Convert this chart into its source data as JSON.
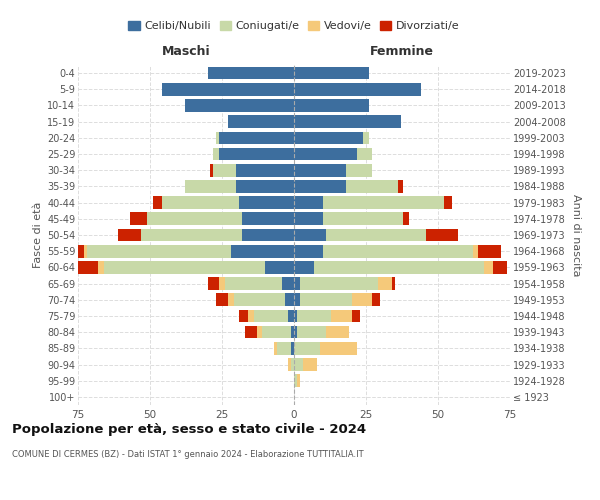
{
  "age_groups": [
    "100+",
    "95-99",
    "90-94",
    "85-89",
    "80-84",
    "75-79",
    "70-74",
    "65-69",
    "60-64",
    "55-59",
    "50-54",
    "45-49",
    "40-44",
    "35-39",
    "30-34",
    "25-29",
    "20-24",
    "15-19",
    "10-14",
    "5-9",
    "0-4"
  ],
  "birth_years": [
    "≤ 1923",
    "1924-1928",
    "1929-1933",
    "1934-1938",
    "1939-1943",
    "1944-1948",
    "1949-1953",
    "1954-1958",
    "1959-1963",
    "1964-1968",
    "1969-1973",
    "1974-1978",
    "1979-1983",
    "1984-1988",
    "1989-1993",
    "1994-1998",
    "1999-2003",
    "2004-2008",
    "2009-2013",
    "2014-2018",
    "2019-2023"
  ],
  "maschi": {
    "celibi": [
      0,
      0,
      0,
      1,
      1,
      2,
      3,
      4,
      10,
      22,
      18,
      18,
      19,
      20,
      20,
      26,
      26,
      23,
      38,
      46,
      30
    ],
    "coniugati": [
      0,
      0,
      1,
      5,
      10,
      12,
      18,
      20,
      56,
      50,
      35,
      33,
      27,
      18,
      8,
      2,
      1,
      0,
      0,
      0,
      0
    ],
    "vedovi": [
      0,
      0,
      1,
      1,
      2,
      2,
      2,
      2,
      2,
      1,
      0,
      0,
      0,
      0,
      0,
      0,
      0,
      0,
      0,
      0,
      0
    ],
    "divorziati": [
      0,
      0,
      0,
      0,
      4,
      3,
      4,
      4,
      7,
      3,
      8,
      6,
      3,
      0,
      1,
      0,
      0,
      0,
      0,
      0,
      0
    ]
  },
  "femmine": {
    "nubili": [
      0,
      0,
      0,
      0,
      1,
      1,
      2,
      2,
      7,
      10,
      11,
      10,
      10,
      18,
      18,
      22,
      24,
      37,
      26,
      44,
      26
    ],
    "coniugate": [
      0,
      1,
      3,
      9,
      10,
      12,
      18,
      27,
      59,
      52,
      35,
      28,
      42,
      18,
      9,
      5,
      2,
      0,
      0,
      0,
      0
    ],
    "vedove": [
      0,
      1,
      5,
      13,
      8,
      7,
      7,
      5,
      3,
      2,
      0,
      0,
      0,
      0,
      0,
      0,
      0,
      0,
      0,
      0,
      0
    ],
    "divorziate": [
      0,
      0,
      0,
      0,
      0,
      3,
      3,
      1,
      5,
      8,
      11,
      2,
      3,
      2,
      0,
      0,
      0,
      0,
      0,
      0,
      0
    ]
  },
  "colors": {
    "celibi": "#3D6E9E",
    "coniugati": "#C8D9A8",
    "vedovi": "#F5C97A",
    "divorziati": "#CC2200"
  },
  "xlim": 75,
  "title": "Popolazione per età, sesso e stato civile - 2024",
  "subtitle": "COMUNE DI CERMES (BZ) - Dati ISTAT 1° gennaio 2024 - Elaborazione TUTTITALIA.IT",
  "ylabel_left": "Fasce di età",
  "ylabel_right": "Anni di nascita",
  "xlabel_maschi": "Maschi",
  "xlabel_femmine": "Femmine",
  "legend_labels": [
    "Celibi/Nubili",
    "Coniugati/e",
    "Vedovi/e",
    "Divorziati/e"
  ],
  "bg_color": "#FFFFFF",
  "grid_color": "#DDDDDD"
}
